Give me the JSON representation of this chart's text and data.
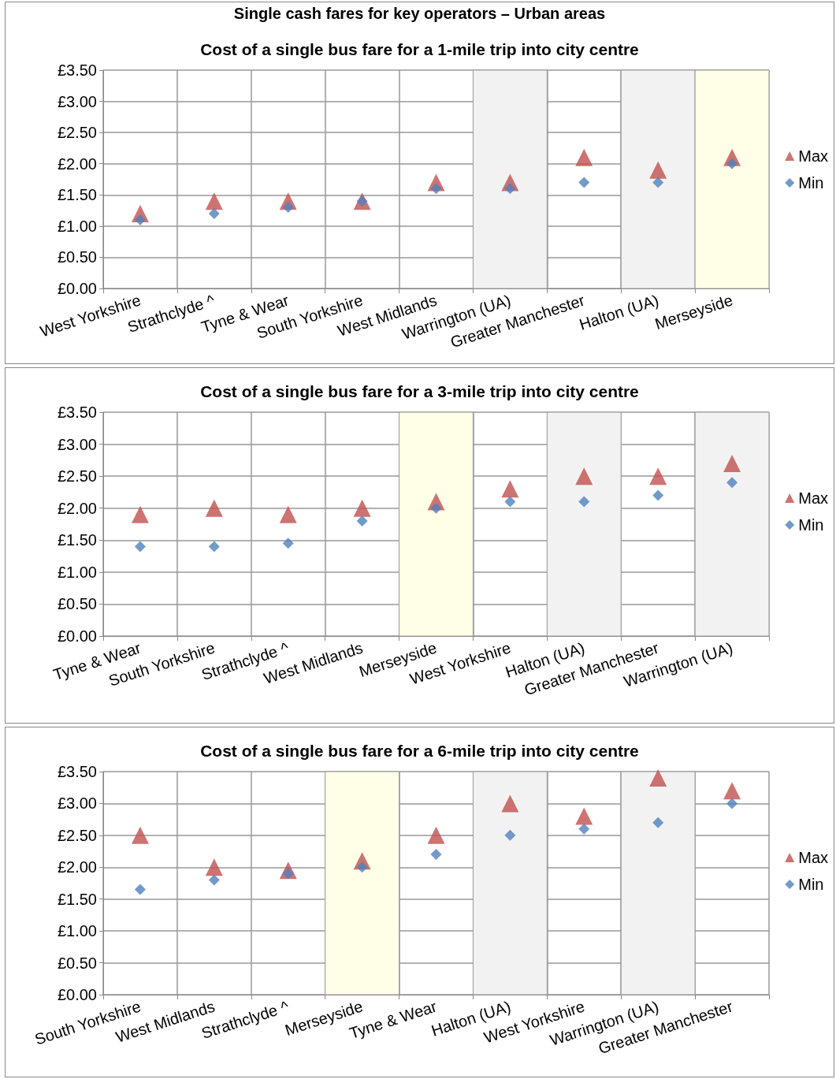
{
  "chart_data": [
    {
      "type": "scatter",
      "title": "Cost of a single bus fare for a 1-mile trip into city centre",
      "annotations": [
        "Single cash fares for key operators – Urban areas"
      ],
      "categories": [
        "West Yorkshire",
        "Strathclyde ^",
        "Tyne & Wear",
        "South Yorkshire",
        "West Midlands",
        "Warrington (UA)",
        "Greater Manchester",
        "Halton (UA)",
        "Merseyside"
      ],
      "series": [
        {
          "name": "Max",
          "color": "#c0504d",
          "marker": "triangle",
          "values": [
            1.2,
            1.4,
            1.4,
            1.4,
            1.7,
            1.7,
            2.1,
            1.9,
            2.1
          ]
        },
        {
          "name": "Min",
          "color": "#4f81bd",
          "marker": "diamond",
          "values": [
            1.1,
            1.2,
            1.3,
            1.4,
            1.6,
            1.6,
            1.7,
            1.7,
            2.0
          ]
        }
      ],
      "ylim": [
        0,
        3.5
      ],
      "yticks": [
        {
          "value": 0,
          "label": "£0.00"
        },
        {
          "value": 0.5,
          "label": "£0.50"
        },
        {
          "value": 1,
          "label": "£1.00"
        },
        {
          "value": 1.5,
          "label": "£1.50"
        },
        {
          "value": 2,
          "label": "£2.00"
        },
        {
          "value": 2.5,
          "label": "£2.50"
        },
        {
          "value": 3,
          "label": "£3.00"
        },
        {
          "value": 3.5,
          "label": "£3.50"
        }
      ],
      "bands": [
        {
          "axis": "x",
          "from": "Warrington (UA)",
          "to": "Warrington (UA)",
          "color": "#f2f2f2"
        },
        {
          "axis": "x",
          "from": "Halton (UA)",
          "to": "Halton (UA)",
          "color": "#f2f2f2"
        },
        {
          "axis": "x",
          "from": "Merseyside",
          "to": "Merseyside",
          "color": "#ffffe8"
        }
      ],
      "grid": true,
      "legend": "right"
    },
    {
      "type": "scatter",
      "title": "Cost of a single bus fare for a 3-mile trip into city centre",
      "categories": [
        "Tyne & Wear",
        "South Yorkshire",
        "Strathclyde ^",
        "West Midlands",
        "Merseyside",
        "West Yorkshire",
        "Halton (UA)",
        "Greater Manchester",
        "Warrington (UA)"
      ],
      "series": [
        {
          "name": "Max",
          "color": "#c0504d",
          "marker": "triangle",
          "values": [
            1.9,
            2.0,
            1.9,
            2.0,
            2.1,
            2.3,
            2.5,
            2.5,
            2.7
          ]
        },
        {
          "name": "Min",
          "color": "#4f81bd",
          "marker": "diamond",
          "values": [
            1.4,
            1.4,
            1.45,
            1.8,
            2.0,
            2.1,
            2.1,
            2.2,
            2.4
          ]
        }
      ],
      "ylim": [
        0,
        3.5
      ],
      "yticks": [
        {
          "value": 0,
          "label": "£0.00"
        },
        {
          "value": 0.5,
          "label": "£0.50"
        },
        {
          "value": 1,
          "label": "£1.00"
        },
        {
          "value": 1.5,
          "label": "£1.50"
        },
        {
          "value": 2,
          "label": "£2.00"
        },
        {
          "value": 2.5,
          "label": "£2.50"
        },
        {
          "value": 3,
          "label": "£3.00"
        },
        {
          "value": 3.5,
          "label": "£3.50"
        }
      ],
      "bands": [
        {
          "axis": "x",
          "from": "Merseyside",
          "to": "Merseyside",
          "color": "#ffffe8"
        },
        {
          "axis": "x",
          "from": "Halton (UA)",
          "to": "Halton (UA)",
          "color": "#f2f2f2"
        },
        {
          "axis": "x",
          "from": "Warrington (UA)",
          "to": "Warrington (UA)",
          "color": "#f2f2f2"
        }
      ],
      "grid": true,
      "legend": "right"
    },
    {
      "type": "scatter",
      "title": "Cost of a single bus fare for a 6-mile trip into city centre",
      "categories": [
        "South Yorkshire",
        "West Midlands",
        "Strathclyde ^",
        "Merseyside",
        "Tyne & Wear",
        "Halton (UA)",
        "West Yorkshire",
        "Warrington (UA)",
        "Greater Manchester"
      ],
      "series": [
        {
          "name": "Max",
          "color": "#c0504d",
          "marker": "triangle",
          "values": [
            2.5,
            2.0,
            1.95,
            2.1,
            2.5,
            3.0,
            2.8,
            3.4,
            3.2
          ]
        },
        {
          "name": "Min",
          "color": "#4f81bd",
          "marker": "diamond",
          "values": [
            1.65,
            1.8,
            1.9,
            2.0,
            2.2,
            2.5,
            2.6,
            2.7,
            3.0
          ]
        }
      ],
      "ylim": [
        0,
        3.5
      ],
      "yticks": [
        {
          "value": 0,
          "label": "£0.00"
        },
        {
          "value": 0.5,
          "label": "£0.50"
        },
        {
          "value": 1,
          "label": "£1.00"
        },
        {
          "value": 1.5,
          "label": "£1.50"
        },
        {
          "value": 2,
          "label": "£2.00"
        },
        {
          "value": 2.5,
          "label": "£2.50"
        },
        {
          "value": 3,
          "label": "£3.00"
        },
        {
          "value": 3.5,
          "label": "£3.50"
        }
      ],
      "bands": [
        {
          "axis": "x",
          "from": "Merseyside",
          "to": "Merseyside",
          "color": "#ffffe8"
        },
        {
          "axis": "x",
          "from": "Halton (UA)",
          "to": "Halton (UA)",
          "color": "#f2f2f2"
        },
        {
          "axis": "x",
          "from": "Warrington (UA)",
          "to": "Warrington (UA)",
          "color": "#f2f2f2"
        }
      ],
      "grid": true,
      "legend": "right"
    }
  ]
}
